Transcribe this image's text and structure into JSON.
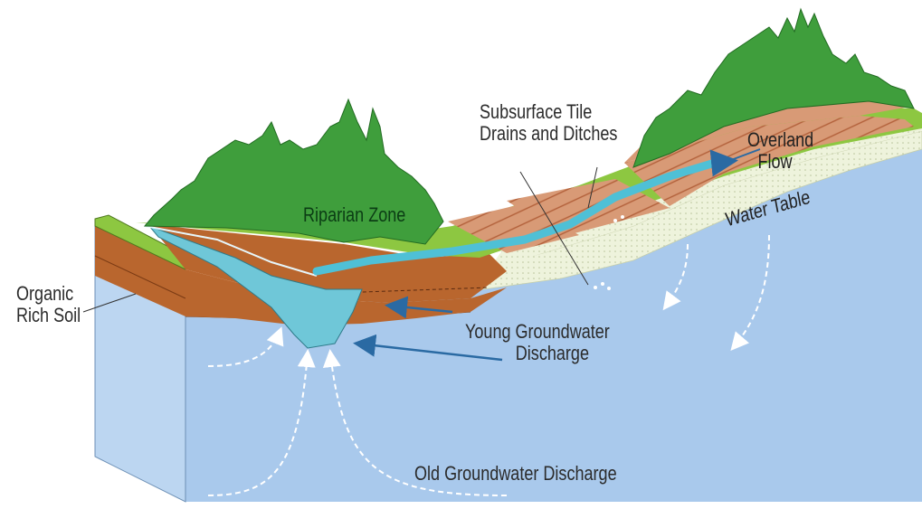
{
  "labels": {
    "subsurface_tile": [
      "Subsurface Tile",
      "Drains and Ditches"
    ],
    "overland_flow": [
      "Overland",
      "Flow"
    ],
    "riparian_zone": "Riparian Zone",
    "water_table": "Water Table",
    "organic_rich_soil": [
      "Organic",
      "Rich Soil"
    ],
    "young_groundwater": [
      "Young Groundwater",
      "Discharge"
    ],
    "old_groundwater": "Old Groundwater Discharge"
  },
  "colors": {
    "groundwater": "#a9c9ec",
    "block_side": "#bcd6f1",
    "stream": "#6fc7d8",
    "soil": "#b9662e",
    "field": "#d89a76",
    "grass": "#8dc741",
    "trees": "#3f9e3c",
    "water_table_band": "#eef3dc",
    "flow_arrow": "#2a6aa3"
  }
}
